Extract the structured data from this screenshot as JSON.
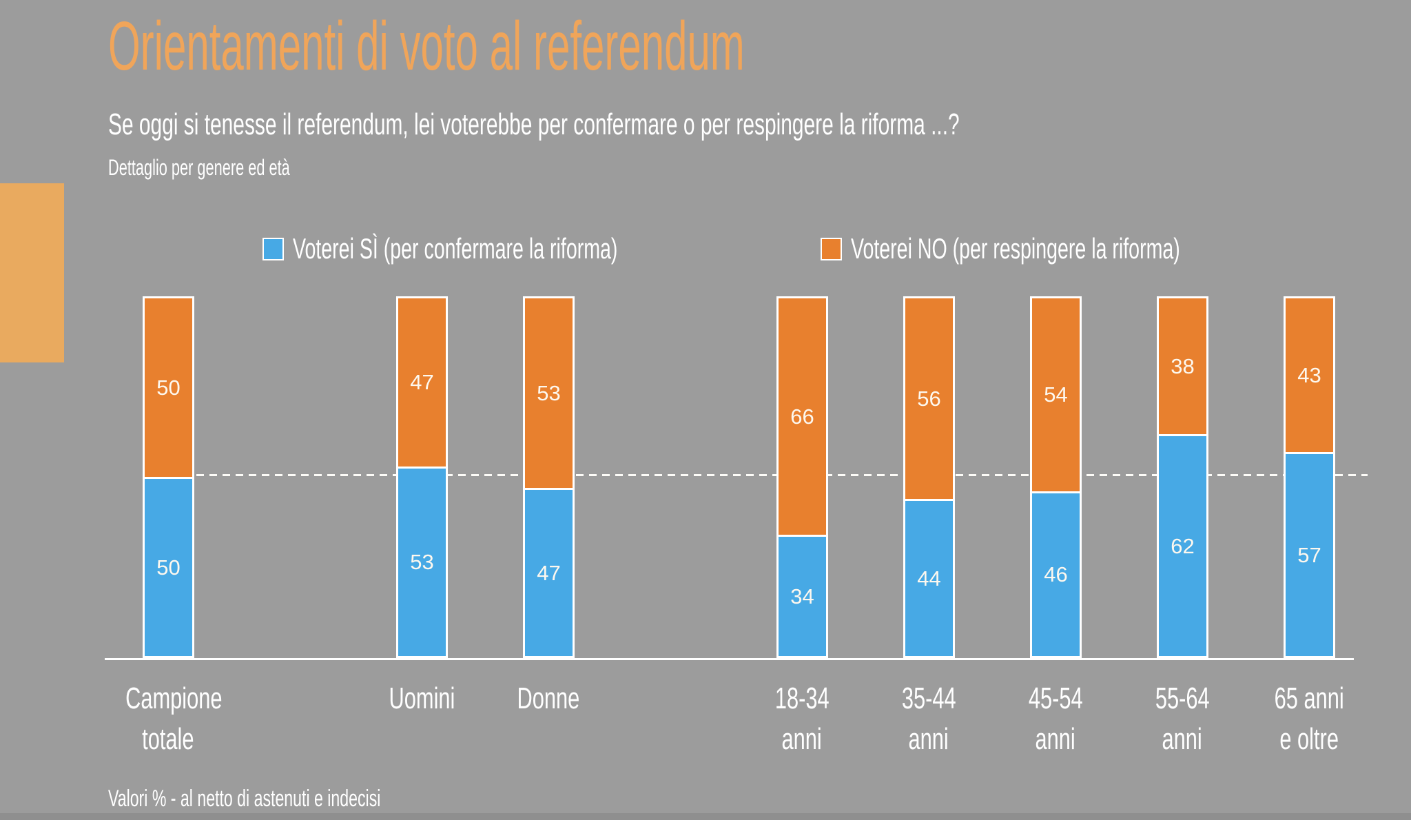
{
  "page": {
    "background": "#9c9c9c",
    "accent_rect_color": "#e9aa5f",
    "title_color": "#f0a55a"
  },
  "header": {
    "title": "Orientamenti di voto al referendum",
    "subtitle": "Se oggi si tenesse il referendum, lei voterebbe per confermare o per respingere la riforma ...?",
    "detail": "Dettaglio per genere ed età"
  },
  "legend": {
    "items": [
      {
        "key": "si",
        "label": "Voterei SÌ (per confermare la riforma)",
        "color": "#47a9e5"
      },
      {
        "key": "no",
        "label": "Voterei NO (per respingere la riforma)",
        "color": "#e8802e"
      }
    ]
  },
  "footnote": "Valori % - al netto di astenuti e indecisi",
  "chart_data": {
    "type": "bar",
    "stacked": true,
    "orientation": "vertical",
    "ylim": [
      0,
      100
    ],
    "grid": false,
    "reference_line": {
      "value": 50,
      "style": "dashed",
      "color": "#ffffff"
    },
    "legend_position": "top",
    "categories": [
      "Campione totale",
      "Uomini",
      "Donne",
      "18-34 anni",
      "35-44 anni",
      "45-54 anni",
      "55-64 anni",
      "65 anni e oltre"
    ],
    "category_label_lines": [
      [
        "Campione",
        "totale"
      ],
      [
        "Uomini"
      ],
      [
        "Donne"
      ],
      [
        "18-34",
        "anni"
      ],
      [
        "35-44",
        "anni"
      ],
      [
        "45-54",
        "anni"
      ],
      [
        "55-64",
        "anni"
      ],
      [
        "65 anni",
        "e oltre"
      ]
    ],
    "category_slots": [
      0,
      2,
      3,
      5,
      6,
      7,
      8,
      9
    ],
    "num_slots": 10,
    "series": [
      {
        "name": "Voterei SÌ (per confermare la riforma)",
        "color": "#47a9e5",
        "values": [
          50,
          53,
          47,
          34,
          44,
          46,
          62,
          57
        ]
      },
      {
        "name": "Voterei NO (per respingere la riforma)",
        "color": "#e8802e",
        "values": [
          50,
          47,
          53,
          66,
          56,
          54,
          38,
          43
        ]
      }
    ],
    "value_labels": "inside-center"
  }
}
